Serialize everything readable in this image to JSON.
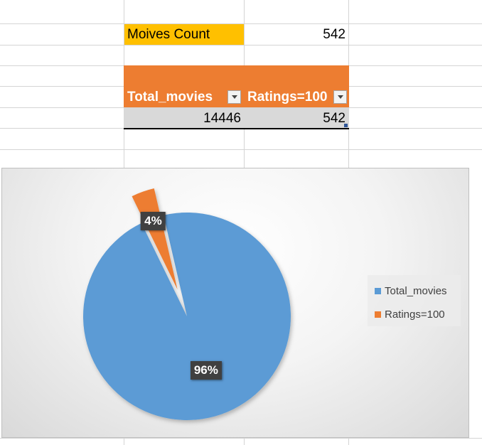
{
  "summary": {
    "label": "Moives Count",
    "value": "542"
  },
  "table": {
    "headers": [
      "Total_movies",
      "Ratings=100"
    ],
    "row": [
      "14446",
      "542"
    ]
  },
  "colors": {
    "label_fill": "#ffc000",
    "table_header": "#ed7d31",
    "table_row": "#d9d9d9",
    "series_total": "#5b9bd5",
    "series_ratings": "#ed7d31"
  },
  "chart_data": {
    "type": "pie",
    "categories": [
      "Total_movies",
      "Ratings=100"
    ],
    "values": [
      14446,
      542
    ],
    "data_labels": [
      "96%",
      "4%"
    ],
    "legend": [
      "Total_movies",
      "Ratings=100"
    ],
    "legend_position": "right",
    "exploded_slice": "Ratings=100"
  }
}
